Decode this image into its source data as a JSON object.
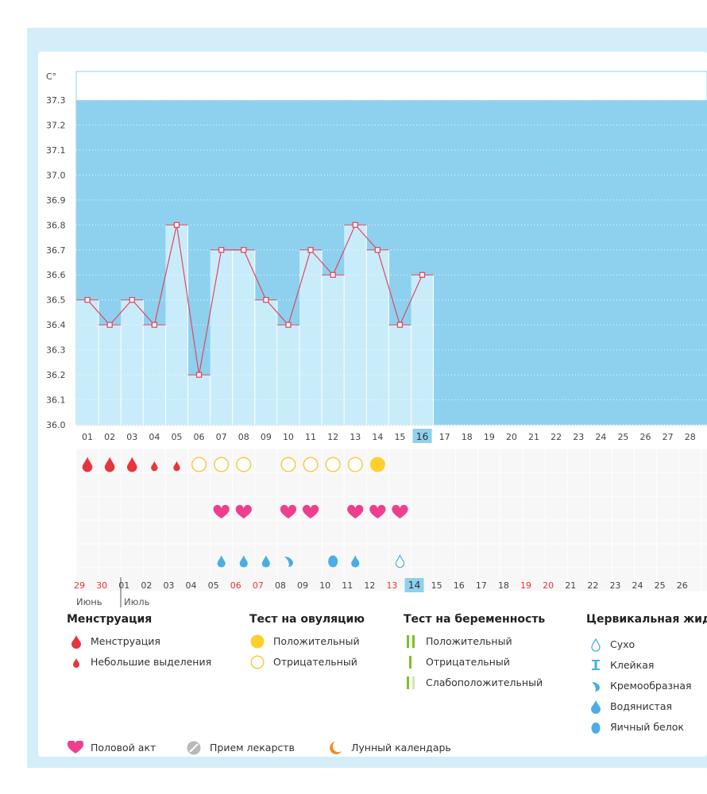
{
  "chart_data": {
    "type": "line",
    "title": "",
    "ylabel": "C°",
    "ylim": [
      36.0,
      37.3
    ],
    "yticks": [
      "36.0",
      "36.1",
      "36.2",
      "36.3",
      "36.4",
      "36.5",
      "36.6",
      "36.7",
      "36.8",
      "36.9",
      "37.0",
      "37.1",
      "37.2",
      "37.3"
    ],
    "cycle_days": [
      "01",
      "02",
      "03",
      "04",
      "05",
      "06",
      "07",
      "08",
      "09",
      "10",
      "11",
      "12",
      "13",
      "14",
      "15",
      "16",
      "17",
      "18",
      "19",
      "20",
      "21",
      "22",
      "23",
      "24",
      "25",
      "26",
      "27",
      "28"
    ],
    "current_cycle_day": "16",
    "temperatures": [
      36.5,
      36.4,
      36.5,
      36.4,
      36.8,
      36.2,
      36.7,
      36.7,
      36.5,
      36.4,
      36.7,
      36.6,
      36.8,
      36.7,
      36.4,
      36.6
    ],
    "menstruation": [
      "heavy",
      "heavy",
      "heavy",
      "light",
      "light",
      "",
      "",
      "",
      "",
      "",
      "",
      "",
      "",
      "",
      "",
      ""
    ],
    "ovulation_test": [
      "",
      "",
      "",
      "",
      "",
      "negative",
      "negative",
      "negative",
      "",
      "negative",
      "negative",
      "negative",
      "negative",
      "positive",
      "",
      ""
    ],
    "intercourse": [
      false,
      false,
      false,
      false,
      false,
      false,
      true,
      true,
      false,
      true,
      true,
      false,
      true,
      true,
      true,
      false
    ],
    "cervical_fluid": [
      "",
      "",
      "",
      "",
      "",
      "",
      "watery",
      "watery",
      "watery",
      "creamy",
      "",
      "egg-white",
      "watery",
      "",
      "dry",
      ""
    ],
    "calendar_dates": [
      "29",
      "30",
      "01",
      "02",
      "03",
      "04",
      "05",
      "06",
      "07",
      "08",
      "09",
      "10",
      "11",
      "12",
      "13",
      "14",
      "15",
      "16",
      "17",
      "18",
      "19",
      "20",
      "21",
      "22",
      "23",
      "24",
      "25",
      "26"
    ],
    "weekend_dates": [
      true,
      true,
      false,
      false,
      false,
      false,
      false,
      true,
      true,
      false,
      false,
      false,
      false,
      false,
      true,
      false,
      false,
      false,
      false,
      false,
      true,
      true,
      false,
      false,
      false,
      false,
      false,
      false
    ],
    "today_date": "14",
    "month_labels": [
      "Июнь",
      "Июль"
    ],
    "colors": {
      "filled_bar": "#c9ecfb",
      "future_area": "#8dd1ef",
      "line": "#e0485f",
      "menstruation": "#e8343c",
      "ovulation_positive": "#ffd02a",
      "ovulation_negative": "#f5cb45",
      "heart": "#ee3f8f",
      "fluid": "#4aaee4",
      "weekend_text": "#e8343c",
      "today_bg": "#8dd1ef"
    }
  },
  "legend": {
    "menstruation": {
      "title": "Менструация",
      "items": [
        "Менструация",
        "Небольшие выделения"
      ]
    },
    "ovulation": {
      "title": "Тест на овуляцию",
      "items": [
        "Положительный",
        "Отрицательный"
      ]
    },
    "pregnancy": {
      "title": "Тест на беременность",
      "items": [
        "Положительный",
        "Отрицательный",
        "Слабоположительный"
      ]
    },
    "cervical": {
      "title": "Цервикальная жидкость",
      "items": [
        "Сухо",
        "Клейкая",
        "Кремообразная",
        "Водянистая",
        "Яичный белок"
      ]
    },
    "other": [
      "Половой акт",
      "Прием лекарств",
      "Лунный календарь"
    ]
  }
}
